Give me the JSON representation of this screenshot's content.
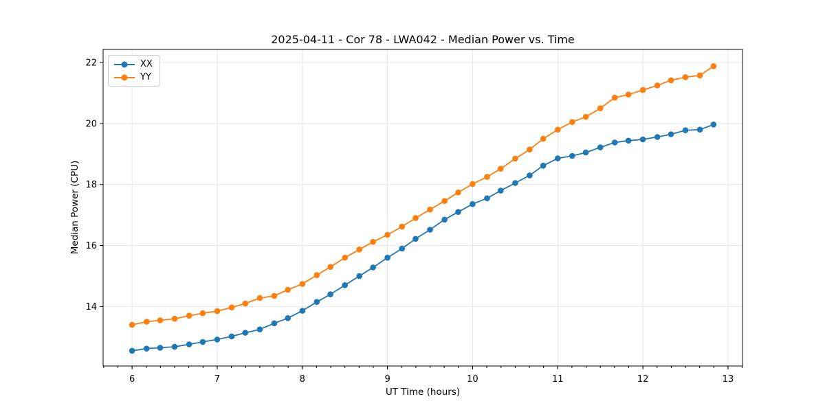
{
  "figure": {
    "background": "#ffffff"
  },
  "chart_data": {
    "type": "line",
    "title": "2025-04-11 - Cor 78 - LWA042 - Median Power vs. Time",
    "xlabel": "UT Time (hours)",
    "ylabel": "Median Power (CPU)",
    "xlim": [
      5.66,
      13.17
    ],
    "ylim": [
      12.05,
      22.43
    ],
    "x_major_ticks": [
      6,
      7,
      8,
      9,
      10,
      11,
      12,
      13
    ],
    "x_minor_step": 0.1666667,
    "y_major_ticks": [
      14,
      16,
      18,
      20,
      22
    ],
    "grid": true,
    "grid_color": "#e6e6e6",
    "spine_color": "#000000",
    "legend_position": "upper-left",
    "x": [
      6.0,
      6.17,
      6.33,
      6.5,
      6.67,
      6.83,
      7.0,
      7.17,
      7.33,
      7.5,
      7.67,
      7.83,
      8.0,
      8.17,
      8.33,
      8.5,
      8.67,
      8.83,
      9.0,
      9.17,
      9.33,
      9.5,
      9.67,
      9.83,
      10.0,
      10.17,
      10.33,
      10.5,
      10.67,
      10.83,
      11.0,
      11.17,
      11.33,
      11.5,
      11.67,
      11.83,
      12.0,
      12.17,
      12.33,
      12.5,
      12.67,
      12.83
    ],
    "series": [
      {
        "name": "XX",
        "color": "#1f77b4",
        "values": [
          12.55,
          12.62,
          12.65,
          12.68,
          12.76,
          12.84,
          12.92,
          13.02,
          13.14,
          13.25,
          13.45,
          13.62,
          13.86,
          14.15,
          14.4,
          14.7,
          15.0,
          15.28,
          15.6,
          15.9,
          16.22,
          16.52,
          16.85,
          17.1,
          17.36,
          17.55,
          17.8,
          18.05,
          18.3,
          18.62,
          18.86,
          18.94,
          19.05,
          19.22,
          19.38,
          19.44,
          19.48,
          19.56,
          19.65,
          19.78,
          19.8,
          19.97
        ]
      },
      {
        "name": "YY",
        "color": "#ff7f0e",
        "values": [
          13.4,
          13.5,
          13.55,
          13.6,
          13.7,
          13.78,
          13.85,
          13.97,
          14.1,
          14.28,
          14.35,
          14.55,
          14.74,
          15.03,
          15.3,
          15.6,
          15.87,
          16.12,
          16.35,
          16.62,
          16.9,
          17.18,
          17.46,
          17.74,
          18.02,
          18.25,
          18.52,
          18.85,
          19.15,
          19.5,
          19.8,
          20.05,
          20.22,
          20.5,
          20.85,
          20.95,
          21.1,
          21.25,
          21.42,
          21.52,
          21.58,
          21.88
        ]
      }
    ]
  }
}
